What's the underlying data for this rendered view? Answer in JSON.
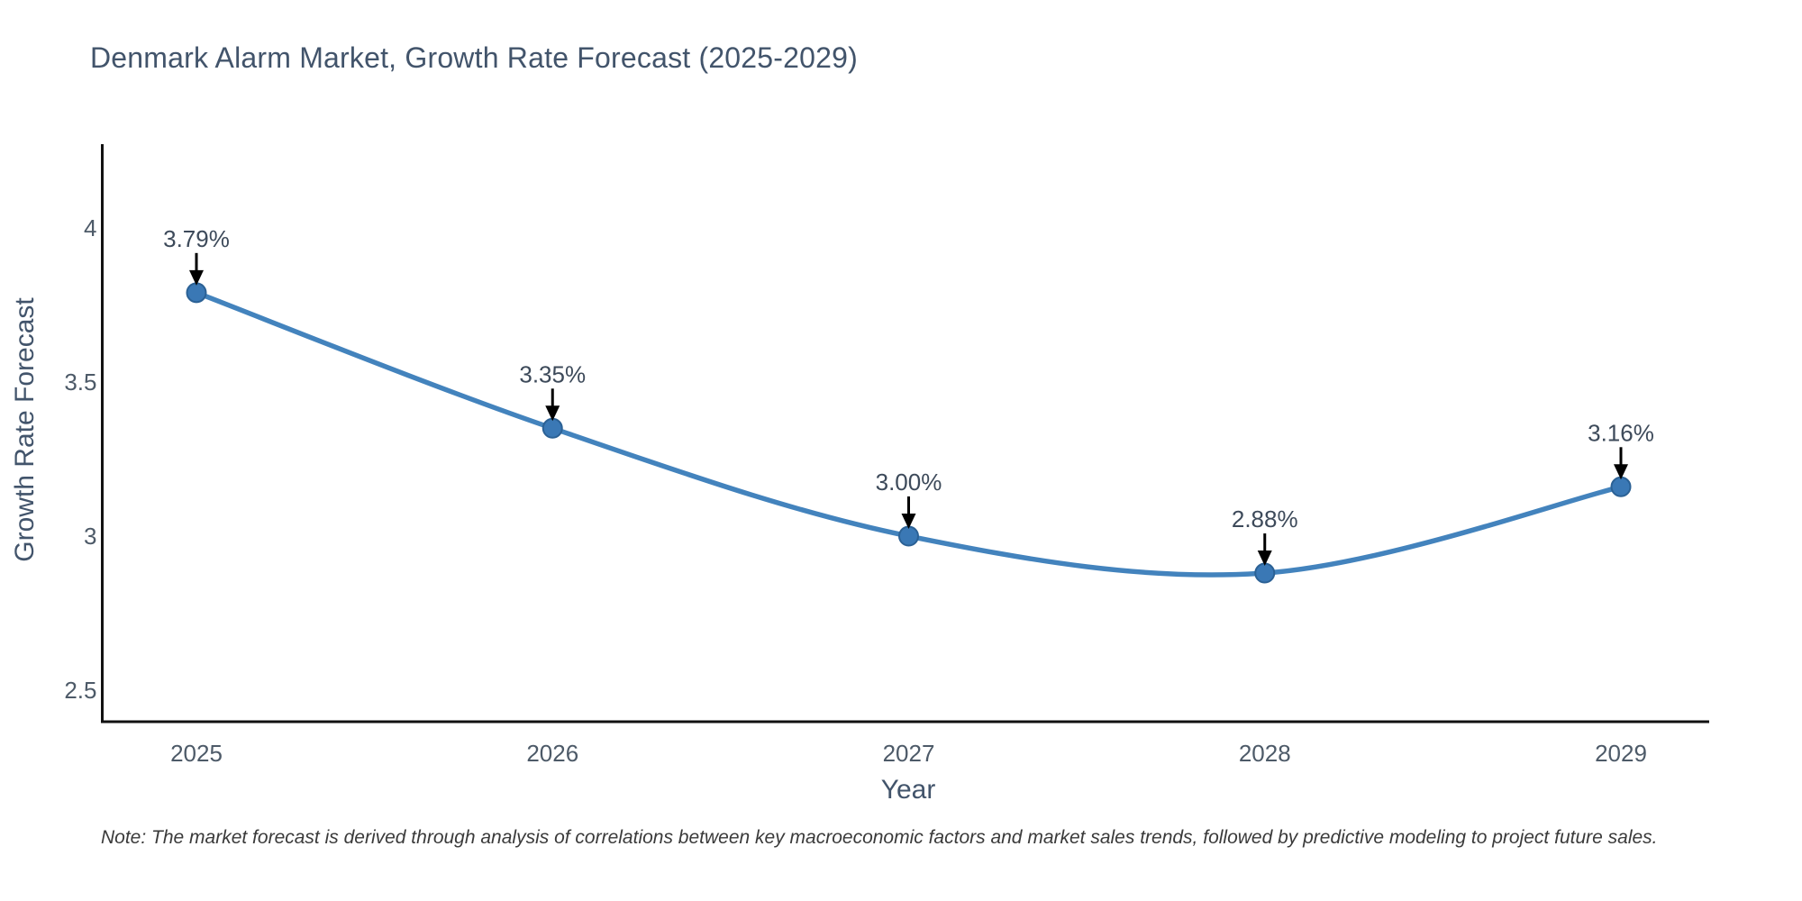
{
  "title": {
    "text": "Denmark Alarm Market, Growth Rate Forecast (2025-2029)"
  },
  "note": {
    "text": "Note: The market forecast is derived through analysis of correlations between key macroeconomic factors and market sales trends, followed by predictive modeling to project future sales."
  },
  "chart_data": {
    "type": "line",
    "title": "Denmark Alarm Market, Growth Rate Forecast (2025-2029)",
    "xlabel": "Year",
    "ylabel": "Growth Rate Forecast",
    "x": [
      2025,
      2026,
      2027,
      2028,
      2029
    ],
    "values": [
      3.79,
      3.35,
      3.0,
      2.88,
      3.16
    ],
    "point_labels": [
      "3.79%",
      "3.35%",
      "3.00%",
      "2.88%",
      "3.16%"
    ],
    "xtick_labels": [
      "2025",
      "2026",
      "2027",
      "2028",
      "2029"
    ],
    "yticks": [
      4,
      3.5,
      3,
      2.5
    ],
    "ytick_labels": [
      "4",
      "3.5",
      "3",
      "2.5"
    ],
    "ylim": [
      2.39,
      4.27
    ],
    "line_shape": "spline",
    "grid": false,
    "legend": "none",
    "annotations": "value labels with black down-arrows above each marker",
    "colors": {
      "line": "#4383bd",
      "marker_fill": "#3a78b5",
      "marker_stroke": "#2b6195",
      "arrow": "#000000",
      "axis": "#111111",
      "tick_text": "#4d5a68",
      "title_text": "#42546b",
      "annotation_text": "#3d4a5a",
      "note_text": "#3a3a3a",
      "background": "#ffffff"
    }
  }
}
